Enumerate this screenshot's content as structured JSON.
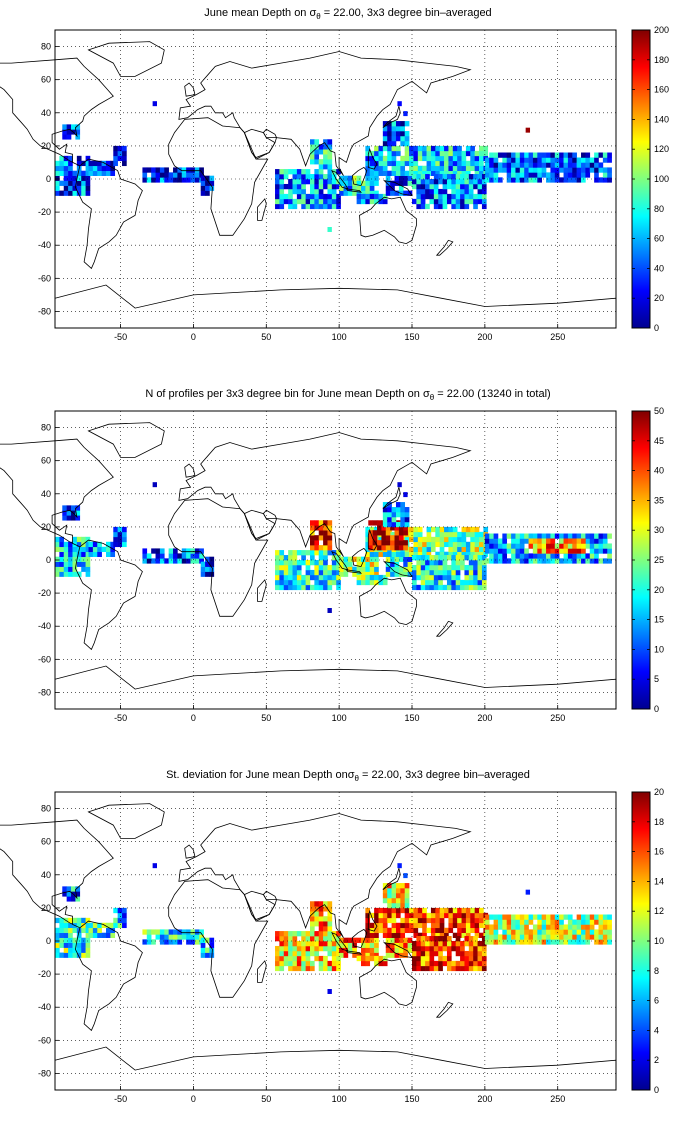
{
  "chart_data": [
    {
      "type": "heatmap",
      "title_prefix": "June mean Depth on ",
      "title_sigma": "σ",
      "title_sub": "θ",
      "title_suffix": " = 22.00, 3x3 degree bin–averaged",
      "xlim": [
        -95,
        290
      ],
      "ylim": [
        -90,
        90
      ],
      "xticks": [
        -50,
        0,
        50,
        100,
        150,
        200,
        250
      ],
      "yticks": [
        80,
        60,
        40,
        20,
        0,
        -20,
        -40,
        -60,
        -80
      ],
      "grid": true,
      "colormap": "jet",
      "colorbar": {
        "min": 0,
        "max": 200,
        "ticks": [
          200,
          180,
          160,
          140,
          120,
          100,
          80,
          60,
          40,
          20,
          0
        ]
      },
      "regions": [
        {
          "x0": -95,
          "x1": -72,
          "y0": -10,
          "y1": 14,
          "value": 35
        },
        {
          "x0": -90,
          "x1": -80,
          "y0": 24,
          "y1": 32,
          "value": 30
        },
        {
          "x0": -72,
          "x1": -55,
          "y0": 2,
          "y1": 10,
          "value": 30
        },
        {
          "x0": -55,
          "x1": -48,
          "y0": 8,
          "y1": 20,
          "value": 30
        },
        {
          "x0": -35,
          "x1": 5,
          "y0": -2,
          "y1": 6,
          "value": 30
        },
        {
          "x0": 5,
          "x1": 12,
          "y0": -10,
          "y1": 2,
          "value": 30
        },
        {
          "x0": 56,
          "x1": 100,
          "y0": -18,
          "y1": 6,
          "value": 50
        },
        {
          "x0": 80,
          "x1": 95,
          "y0": 6,
          "y1": 22,
          "value": 62
        },
        {
          "x0": 100,
          "x1": 125,
          "y0": -10,
          "y1": 2,
          "value": 70
        },
        {
          "x0": 112,
          "x1": 132,
          "y0": -15,
          "y1": -10,
          "value": 55
        },
        {
          "x0": 132,
          "x1": 150,
          "y0": -10,
          "y1": 0,
          "value": 45
        },
        {
          "x0": 118,
          "x1": 200,
          "y0": 2,
          "y1": 20,
          "value": 60
        },
        {
          "x0": 150,
          "x1": 200,
          "y0": -18,
          "y1": 2,
          "value": 45
        },
        {
          "x0": 130,
          "x1": 148,
          "y0": 20,
          "y1": 34,
          "value": 35
        },
        {
          "x0": 200,
          "x1": 285,
          "y0": -2,
          "y1": 16,
          "value": 40
        }
      ],
      "cells": [
        {
          "x": 228,
          "y": 28,
          "value": 195
        },
        {
          "x": 92,
          "y": -32,
          "value": 85
        },
        {
          "x": 140,
          "y": 44,
          "value": 25
        },
        {
          "x": 144,
          "y": 38,
          "value": 30
        },
        {
          "x": -28,
          "y": 44,
          "value": 20
        }
      ]
    },
    {
      "type": "heatmap",
      "title_prefix": "N of profiles per 3x3 degree bin for June mean Depth on ",
      "title_sigma": "σ",
      "title_sub": "θ",
      "title_suffix": " = 22.00 (13240 in total)",
      "xlim": [
        -95,
        290
      ],
      "ylim": [
        -90,
        90
      ],
      "xticks": [
        -50,
        0,
        50,
        100,
        150,
        200,
        250
      ],
      "yticks": [
        80,
        60,
        40,
        20,
        0,
        -20,
        -40,
        -60,
        -80
      ],
      "grid": true,
      "colormap": "jet",
      "colorbar": {
        "min": 0,
        "max": 50,
        "ticks": [
          50,
          45,
          40,
          35,
          30,
          25,
          20,
          15,
          10,
          5,
          0
        ]
      },
      "regions": [
        {
          "x0": -95,
          "x1": -72,
          "y0": -10,
          "y1": 14,
          "value": 15
        },
        {
          "x0": -90,
          "x1": -80,
          "y0": 24,
          "y1": 32,
          "value": 8
        },
        {
          "x0": -72,
          "x1": -55,
          "y0": 2,
          "y1": 10,
          "value": 10
        },
        {
          "x0": -55,
          "x1": -48,
          "y0": 8,
          "y1": 20,
          "value": 8
        },
        {
          "x0": -35,
          "x1": 5,
          "y0": -2,
          "y1": 6,
          "value": 10
        },
        {
          "x0": 5,
          "x1": 12,
          "y0": -10,
          "y1": 2,
          "value": 8
        },
        {
          "x0": 56,
          "x1": 100,
          "y0": -18,
          "y1": 6,
          "value": 20
        },
        {
          "x0": 80,
          "x1": 95,
          "y0": 6,
          "y1": 22,
          "value": 42
        },
        {
          "x0": 100,
          "x1": 125,
          "y0": -10,
          "y1": 2,
          "value": 25
        },
        {
          "x0": 112,
          "x1": 132,
          "y0": -15,
          "y1": -10,
          "value": 20
        },
        {
          "x0": 132,
          "x1": 150,
          "y0": -10,
          "y1": 0,
          "value": 18
        },
        {
          "x0": 118,
          "x1": 200,
          "y0": 2,
          "y1": 20,
          "value": 24
        },
        {
          "x0": 120,
          "x1": 145,
          "y0": 6,
          "y1": 24,
          "value": 46
        },
        {
          "x0": 150,
          "x1": 200,
          "y0": -18,
          "y1": 2,
          "value": 18
        },
        {
          "x0": 130,
          "x1": 148,
          "y0": 20,
          "y1": 34,
          "value": 12
        },
        {
          "x0": 200,
          "x1": 285,
          "y0": -2,
          "y1": 16,
          "value": 14
        },
        {
          "x0": 230,
          "x1": 268,
          "y0": 4,
          "y1": 12,
          "value": 36
        }
      ],
      "cells": [
        {
          "x": 92,
          "y": -32,
          "value": 3
        },
        {
          "x": 140,
          "y": 44,
          "value": 4
        },
        {
          "x": 144,
          "y": 38,
          "value": 5
        },
        {
          "x": -28,
          "y": 44,
          "value": 3
        }
      ]
    },
    {
      "type": "heatmap",
      "title_prefix": "St. deviation for June mean Depth on",
      "title_sigma": "σ",
      "title_sub": "θ",
      "title_suffix": " = 22.00, 3x3 degree bin–averaged",
      "xlim": [
        -95,
        290
      ],
      "ylim": [
        -90,
        90
      ],
      "xticks": [
        -50,
        0,
        50,
        100,
        150,
        200,
        250
      ],
      "yticks": [
        80,
        60,
        40,
        20,
        0,
        -20,
        -40,
        -60,
        -80
      ],
      "grid": true,
      "colormap": "jet",
      "colorbar": {
        "min": 0,
        "max": 20,
        "ticks": [
          20,
          18,
          16,
          14,
          12,
          10,
          8,
          6,
          4,
          2,
          0
        ]
      },
      "regions": [
        {
          "x0": -95,
          "x1": -72,
          "y0": -10,
          "y1": 14,
          "value": 8
        },
        {
          "x0": -90,
          "x1": -80,
          "y0": 24,
          "y1": 32,
          "value": 5
        },
        {
          "x0": -72,
          "x1": -55,
          "y0": 2,
          "y1": 10,
          "value": 7
        },
        {
          "x0": -55,
          "x1": -48,
          "y0": 8,
          "y1": 20,
          "value": 6
        },
        {
          "x0": -35,
          "x1": 5,
          "y0": -2,
          "y1": 6,
          "value": 7
        },
        {
          "x0": 5,
          "x1": 12,
          "y0": -10,
          "y1": 2,
          "value": 6
        },
        {
          "x0": 56,
          "x1": 100,
          "y0": -18,
          "y1": 6,
          "value": 13
        },
        {
          "x0": 80,
          "x1": 95,
          "y0": 6,
          "y1": 22,
          "value": 14
        },
        {
          "x0": 100,
          "x1": 125,
          "y0": -10,
          "y1": 2,
          "value": 14
        },
        {
          "x0": 112,
          "x1": 132,
          "y0": -15,
          "y1": -10,
          "value": 15
        },
        {
          "x0": 132,
          "x1": 150,
          "y0": -10,
          "y1": 0,
          "value": 14
        },
        {
          "x0": 118,
          "x1": 200,
          "y0": 2,
          "y1": 20,
          "value": 16
        },
        {
          "x0": 150,
          "x1": 200,
          "y0": -18,
          "y1": 2,
          "value": 16
        },
        {
          "x0": 130,
          "x1": 148,
          "y0": 20,
          "y1": 34,
          "value": 12
        },
        {
          "x0": 200,
          "x1": 285,
          "y0": -2,
          "y1": 16,
          "value": 11
        }
      ],
      "cells": [
        {
          "x": 92,
          "y": -32,
          "value": 2
        },
        {
          "x": 140,
          "y": 44,
          "value": 3
        },
        {
          "x": 144,
          "y": 38,
          "value": 4
        },
        {
          "x": -28,
          "y": 44,
          "value": 2
        },
        {
          "x": 228,
          "y": 28,
          "value": 3
        }
      ]
    }
  ]
}
